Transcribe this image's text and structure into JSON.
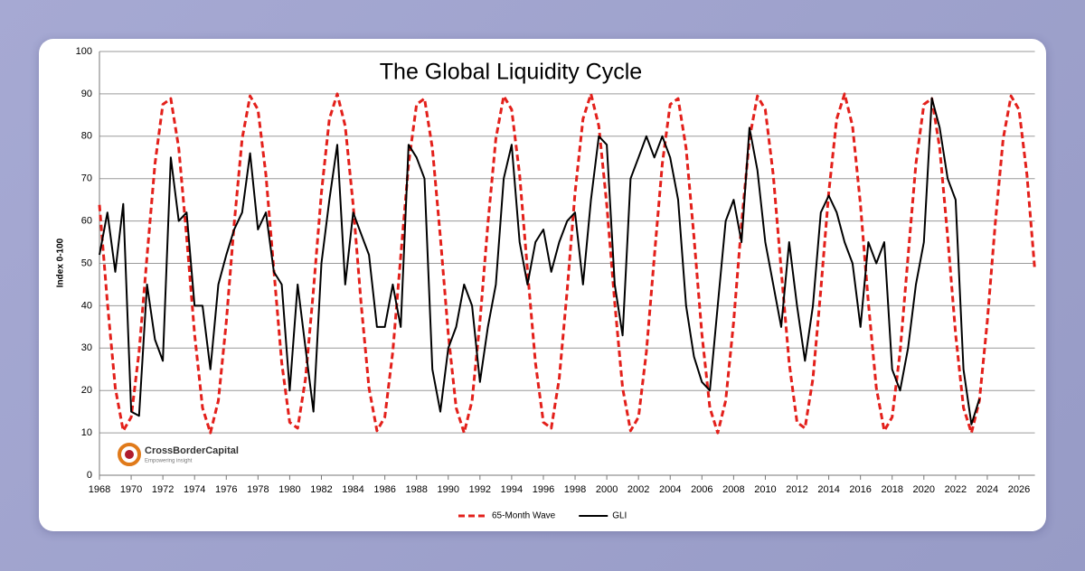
{
  "chart_data": {
    "type": "line",
    "title": "The Global Liquidity Cycle",
    "y_label": "Index 0-100",
    "x": [
      1968,
      1968.5,
      1969,
      1969.5,
      1970,
      1970.5,
      1971,
      1971.5,
      1972,
      1972.5,
      1973,
      1973.5,
      1974,
      1974.5,
      1975,
      1975.5,
      1976,
      1976.5,
      1977,
      1977.5,
      1978,
      1978.5,
      1979,
      1979.5,
      1980,
      1980.5,
      1981,
      1981.5,
      1982,
      1982.5,
      1983,
      1983.5,
      1984,
      1984.5,
      1985,
      1985.5,
      1986,
      1986.5,
      1987,
      1987.5,
      1988,
      1988.5,
      1989,
      1989.5,
      1990,
      1990.5,
      1991,
      1991.5,
      1992,
      1992.5,
      1993,
      1993.5,
      1994,
      1994.5,
      1995,
      1995.5,
      1996,
      1996.5,
      1997,
      1997.5,
      1998,
      1998.5,
      1999,
      1999.5,
      2000,
      2000.5,
      2001,
      2001.5,
      2002,
      2002.5,
      2003,
      2003.5,
      2004,
      2004.5,
      2005,
      2005.5,
      2006,
      2006.5,
      2007,
      2007.5,
      2008,
      2008.5,
      2009,
      2009.5,
      2010,
      2010.5,
      2011,
      2011.5,
      2012,
      2012.5,
      2013,
      2013.5,
      2014,
      2014.5,
      2015,
      2015.5,
      2016,
      2016.5,
      2017,
      2017.5,
      2018,
      2018.5,
      2019,
      2019.5,
      2020,
      2020.5,
      2021,
      2021.5,
      2022,
      2022.5,
      2023,
      2023.5,
      2024,
      2024.5,
      2025,
      2025.5,
      2026,
      2026.5,
      2027
    ],
    "series": [
      {
        "name": "65-Month Wave",
        "color": "#e3201b",
        "dashed": true,
        "values": [
          63.8,
          40.7,
          20.6,
          10.5,
          13.7,
          29.1,
          51.6,
          73.5,
          87.5,
          88.9,
          77.2,
          56.3,
          33.3,
          15.9,
          10.0,
          17.6,
          36.2,
          59.3,
          79.4,
          89.5,
          86.3,
          70.9,
          48.4,
          26.5,
          12.5,
          11.1,
          22.8,
          43.7,
          66.7,
          84.1,
          90.0,
          82.4,
          63.8,
          40.7,
          20.6,
          10.5,
          13.7,
          29.1,
          51.6,
          73.5,
          87.5,
          88.9,
          77.2,
          56.3,
          33.3,
          15.9,
          10.0,
          17.6,
          36.2,
          59.3,
          79.4,
          89.5,
          86.3,
          70.9,
          48.4,
          26.5,
          12.5,
          11.1,
          22.8,
          43.7,
          66.7,
          84.1,
          90.0,
          82.4,
          63.8,
          40.7,
          20.6,
          10.5,
          13.7,
          29.1,
          51.6,
          73.5,
          87.5,
          88.9,
          77.2,
          56.3,
          33.3,
          15.9,
          10.0,
          17.6,
          36.2,
          59.3,
          79.4,
          89.5,
          86.3,
          70.9,
          48.4,
          26.5,
          12.5,
          11.1,
          22.8,
          43.7,
          66.7,
          84.1,
          90.0,
          82.4,
          63.8,
          40.7,
          20.6,
          10.5,
          13.7,
          29.1,
          51.6,
          73.5,
          87.5,
          88.9,
          77.2,
          56.3,
          33.3,
          15.9,
          10.0,
          17.6,
          36.2,
          59.3,
          79.4,
          89.5,
          86.3,
          70.9,
          48.4
        ]
      },
      {
        "name": "GLI",
        "color": "#000000",
        "dashed": false,
        "values": [
          52,
          62,
          48,
          64,
          15,
          14,
          45,
          32,
          27,
          75,
          60,
          62,
          40,
          40,
          25,
          45,
          52,
          58,
          62,
          76,
          58,
          62,
          48,
          45,
          20,
          45,
          30,
          15,
          50,
          65,
          78,
          45,
          62,
          57,
          52,
          35,
          35,
          45,
          35,
          78,
          75,
          70,
          25,
          15,
          30,
          35,
          45,
          40,
          22,
          35,
          45,
          70,
          78,
          55,
          45,
          55,
          58,
          48,
          55,
          60,
          62,
          45,
          65,
          80,
          78,
          45,
          33,
          70,
          75,
          80,
          75,
          80,
          75,
          65,
          40,
          28,
          22,
          20,
          40,
          60,
          65,
          55,
          82,
          72,
          55,
          45,
          35,
          55,
          40,
          27,
          40,
          62,
          66,
          62,
          55,
          50,
          35,
          55,
          50,
          55,
          25,
          20,
          30,
          45,
          55,
          89,
          82,
          70,
          65,
          25,
          12,
          18,
          null,
          null,
          null,
          null,
          null,
          null,
          null
        ]
      }
    ],
    "xlim": [
      1968,
      2027
    ],
    "xticks": [
      1968,
      1970,
      1972,
      1974,
      1976,
      1978,
      1980,
      1982,
      1984,
      1986,
      1988,
      1990,
      1992,
      1994,
      1996,
      1998,
      2000,
      2002,
      2004,
      2006,
      2008,
      2010,
      2012,
      2014,
      2016,
      2018,
      2020,
      2022,
      2024,
      2026
    ],
    "ylim": [
      0,
      100
    ],
    "yticks": [
      0,
      10,
      20,
      30,
      40,
      50,
      60,
      70,
      80,
      90,
      100
    ],
    "grid": true,
    "legend": "bottom"
  },
  "watermark": {
    "name": "CrossBorderCapital",
    "tagline": "Empowering insight"
  }
}
